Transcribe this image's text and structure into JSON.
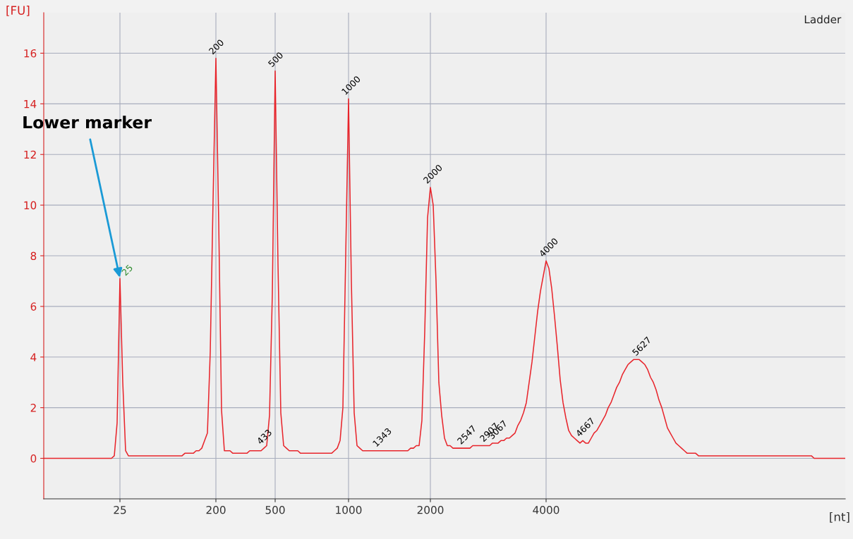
{
  "chart_data": {
    "type": "line",
    "title": "Ladder",
    "xlabel": "[nt]",
    "ylabel": "[FU]",
    "categories": [
      null,
      null,
      null,
      null,
      null,
      null,
      null,
      null,
      null,
      null,
      null,
      null,
      null,
      null,
      null,
      null,
      null,
      null,
      null,
      null,
      null,
      null,
      null,
      null,
      null,
      null,
      null,
      "25",
      null,
      null,
      null,
      null,
      null,
      null,
      null,
      null,
      null,
      null,
      null,
      null,
      null,
      null,
      null,
      null,
      null,
      null,
      null,
      null,
      null,
      null,
      null,
      null,
      null,
      null,
      null,
      null,
      null,
      null,
      null,
      null,
      null,
      "200",
      null,
      null,
      null,
      null,
      null,
      null,
      null,
      null,
      null,
      null,
      null,
      null,
      null,
      null,
      null,
      null,
      null,
      null,
      null,
      null,
      "500",
      null,
      null,
      null,
      null,
      null,
      null,
      null,
      null,
      null,
      null,
      null,
      null,
      null,
      null,
      null,
      null,
      null,
      null,
      null,
      null,
      null,
      null,
      null,
      null,
      null,
      "1000",
      null,
      null,
      null,
      null,
      null,
      null,
      null,
      null,
      null,
      null,
      null,
      null,
      null,
      null,
      null,
      null,
      null,
      null,
      null,
      null,
      null,
      null,
      null,
      null,
      null,
      null,
      null,
      null,
      "2000",
      null,
      null,
      null,
      null,
      null,
      null,
      null,
      null,
      null,
      null,
      null,
      null,
      null,
      null,
      null,
      null,
      null,
      null,
      null,
      null,
      null,
      null,
      null,
      null,
      null,
      null,
      null,
      null,
      null,
      null,
      null,
      null,
      null,
      null,
      null,
      null,
      null,
      null,
      null,
      null,
      "4000",
      null,
      null,
      null,
      null,
      null,
      null,
      null,
      null,
      null,
      null,
      null,
      null,
      null,
      null,
      null,
      null,
      null,
      null,
      null,
      null,
      null,
      null,
      null,
      null,
      null,
      null,
      null,
      null,
      null,
      null,
      null,
      null,
      null,
      null,
      null,
      null,
      null,
      null,
      null,
      null,
      null,
      null,
      null,
      null,
      null,
      null,
      null,
      null,
      null,
      null,
      null,
      null,
      null,
      null,
      null,
      null,
      null,
      null,
      null,
      null,
      null,
      null,
      null,
      null,
      null,
      null,
      null,
      null,
      null,
      null,
      null,
      null,
      null,
      null,
      null,
      null,
      null,
      null,
      null,
      null,
      null,
      null,
      null,
      null,
      null,
      null,
      null,
      null,
      null,
      null,
      null,
      null,
      null,
      null,
      null,
      null,
      null,
      null,
      null,
      null,
      null,
      null,
      null,
      null,
      null,
      null
    ],
    "ylim": [
      -1.6,
      17.6
    ],
    "yticks": [
      0,
      2,
      4,
      6,
      8,
      10,
      12,
      14,
      16
    ],
    "grid": true,
    "legend": false,
    "marker": "none",
    "line_style": "solid",
    "series": [
      {
        "color": "#e8242b",
        "values": [
          0,
          0,
          0,
          0,
          0,
          0,
          0,
          0,
          0,
          0,
          0,
          0,
          0,
          0,
          0,
          0,
          0,
          0,
          0,
          0,
          0,
          0,
          0,
          0,
          0,
          0.1,
          1.4,
          7.1,
          3,
          0.3,
          0.1,
          0.1,
          0.1,
          0.1,
          0.1,
          0.1,
          0.1,
          0.1,
          0.1,
          0.1,
          0.1,
          0.1,
          0.1,
          0.1,
          0.1,
          0.1,
          0.1,
          0.1,
          0.1,
          0.1,
          0.2,
          0.2,
          0.2,
          0.2,
          0.3,
          0.3,
          0.4,
          0.7,
          1,
          4.2,
          10.2,
          15.8,
          9.3,
          1.9,
          0.3,
          0.3,
          0.3,
          0.2,
          0.2,
          0.2,
          0.2,
          0.2,
          0.2,
          0.3,
          0.3,
          0.3,
          0.3,
          0.3,
          0.4,
          0.5,
          1.7,
          6.5,
          15.3,
          7.7,
          1.8,
          0.5,
          0.4,
          0.3,
          0.3,
          0.3,
          0.3,
          0.2,
          0.2,
          0.2,
          0.2,
          0.2,
          0.2,
          0.2,
          0.2,
          0.2,
          0.2,
          0.2,
          0.2,
          0.3,
          0.4,
          0.7,
          2,
          8,
          14.2,
          7,
          1.8,
          0.5,
          0.4,
          0.3,
          0.3,
          0.3,
          0.3,
          0.3,
          0.3,
          0.3,
          0.3,
          0.3,
          0.3,
          0.3,
          0.3,
          0.3,
          0.3,
          0.3,
          0.3,
          0.3,
          0.4,
          0.4,
          0.5,
          0.5,
          1.5,
          5,
          9.5,
          10.7,
          10,
          7,
          3,
          1.7,
          0.8,
          0.5,
          0.5,
          0.4,
          0.4,
          0.4,
          0.4,
          0.4,
          0.4,
          0.4,
          0.5,
          0.5,
          0.5,
          0.5,
          0.5,
          0.5,
          0.5,
          0.6,
          0.6,
          0.6,
          0.7,
          0.7,
          0.8,
          0.8,
          0.9,
          1,
          1.3,
          1.5,
          1.8,
          2.2,
          3,
          3.8,
          4.8,
          5.8,
          6.6,
          7.2,
          7.8,
          7.5,
          6.7,
          5.6,
          4.4,
          3.1,
          2.2,
          1.6,
          1.1,
          0.9,
          0.8,
          0.7,
          0.6,
          0.7,
          0.6,
          0.6,
          0.8,
          1,
          1.1,
          1.3,
          1.5,
          1.7,
          2,
          2.2,
          2.5,
          2.8,
          3,
          3.3,
          3.5,
          3.7,
          3.8,
          3.9,
          3.9,
          3.9,
          3.8,
          3.7,
          3.5,
          3.2,
          3,
          2.7,
          2.3,
          2,
          1.6,
          1.2,
          1,
          0.8,
          0.6,
          0.5,
          0.4,
          0.3,
          0.2,
          0.2,
          0.2,
          0.2,
          0.1,
          0.1,
          0.1,
          0.1,
          0.1,
          0.1,
          0.1,
          0.1,
          0.1,
          0.1,
          0.1,
          0.1,
          0.1,
          0.1,
          0.1,
          0.1,
          0.1,
          0.1,
          0.1,
          0.1,
          0.1,
          0.1,
          0.1,
          0.1,
          0.1,
          0.1,
          0.1,
          0.1,
          0.1,
          0.1,
          0.1,
          0.1,
          0.1,
          0.1,
          0.1,
          0.1,
          0.1,
          0.1,
          0.1,
          0.1,
          0.1,
          0,
          0,
          0,
          0,
          0,
          0,
          0,
          0,
          0,
          0,
          0,
          0
        ]
      }
    ],
    "annotations": [
      {
        "text": "Lower marker",
        "x": "25",
        "y": 7.1
      },
      {
        "text": "25",
        "x": "25",
        "y": 7.1
      },
      {
        "text": "200",
        "x": "200",
        "y": 15.8
      },
      {
        "text": "500",
        "x": "500",
        "y": 15.3
      },
      {
        "text": "1000",
        "x": "1000",
        "y": 14.2
      },
      {
        "text": "2000",
        "x": "2000",
        "y": 10.7
      },
      {
        "text": "433",
        "y": 0.4
      },
      {
        "text": "1343",
        "y": 0.3
      },
      {
        "text": "2547",
        "y": 0.4
      },
      {
        "text": "2907",
        "y": 0.5
      },
      {
        "text": "3067",
        "y": 0.6
      },
      {
        "text": "4000",
        "x": "4000",
        "y": 7.8
      },
      {
        "text": "4667",
        "y": 0.7
      },
      {
        "text": "5627",
        "y": 3.9
      }
    ]
  }
}
